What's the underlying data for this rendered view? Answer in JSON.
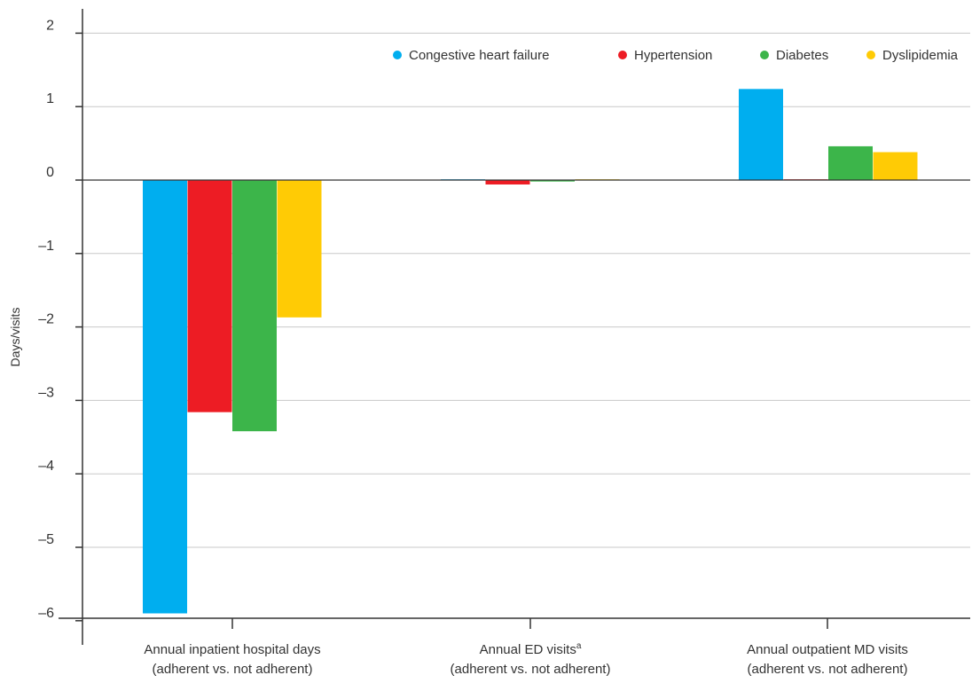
{
  "chart_data": {
    "type": "bar",
    "title": "",
    "ylabel": "Days/visits",
    "ylim": [
      -6,
      2
    ],
    "yticks": [
      2,
      1,
      0,
      -1,
      -2,
      -3,
      -4,
      -5,
      -6
    ],
    "ytick_labels": [
      "2",
      "1",
      "0",
      "–1",
      "–2",
      "–3",
      "–4",
      "–5",
      "–6"
    ],
    "grid": true,
    "legend_position": "top-right",
    "categories": [
      {
        "line1": "Annual inpatient hospital days",
        "line2": "(adherent vs. not adherent)",
        "superscript": ""
      },
      {
        "line1": "Annual ED visits",
        "line2": "(adherent vs. not adherent)",
        "superscript": "a"
      },
      {
        "line1": "Annual outpatient MD visits",
        "line2": "(adherent vs. not adherent)",
        "superscript": ""
      }
    ],
    "series": [
      {
        "name": "Congestive heart failure",
        "color": "#00AEEF",
        "values": [
          -5.9,
          0.01,
          1.24
        ]
      },
      {
        "name": "Hypertension",
        "color": "#ED1C24",
        "values": [
          -3.16,
          -0.06,
          0.01
        ]
      },
      {
        "name": "Diabetes",
        "color": "#3CB54A",
        "values": [
          -3.42,
          -0.02,
          0.46
        ]
      },
      {
        "name": "Dyslipidemia",
        "color": "#FFCB05",
        "values": [
          -1.87,
          0.01,
          0.38
        ]
      }
    ]
  }
}
